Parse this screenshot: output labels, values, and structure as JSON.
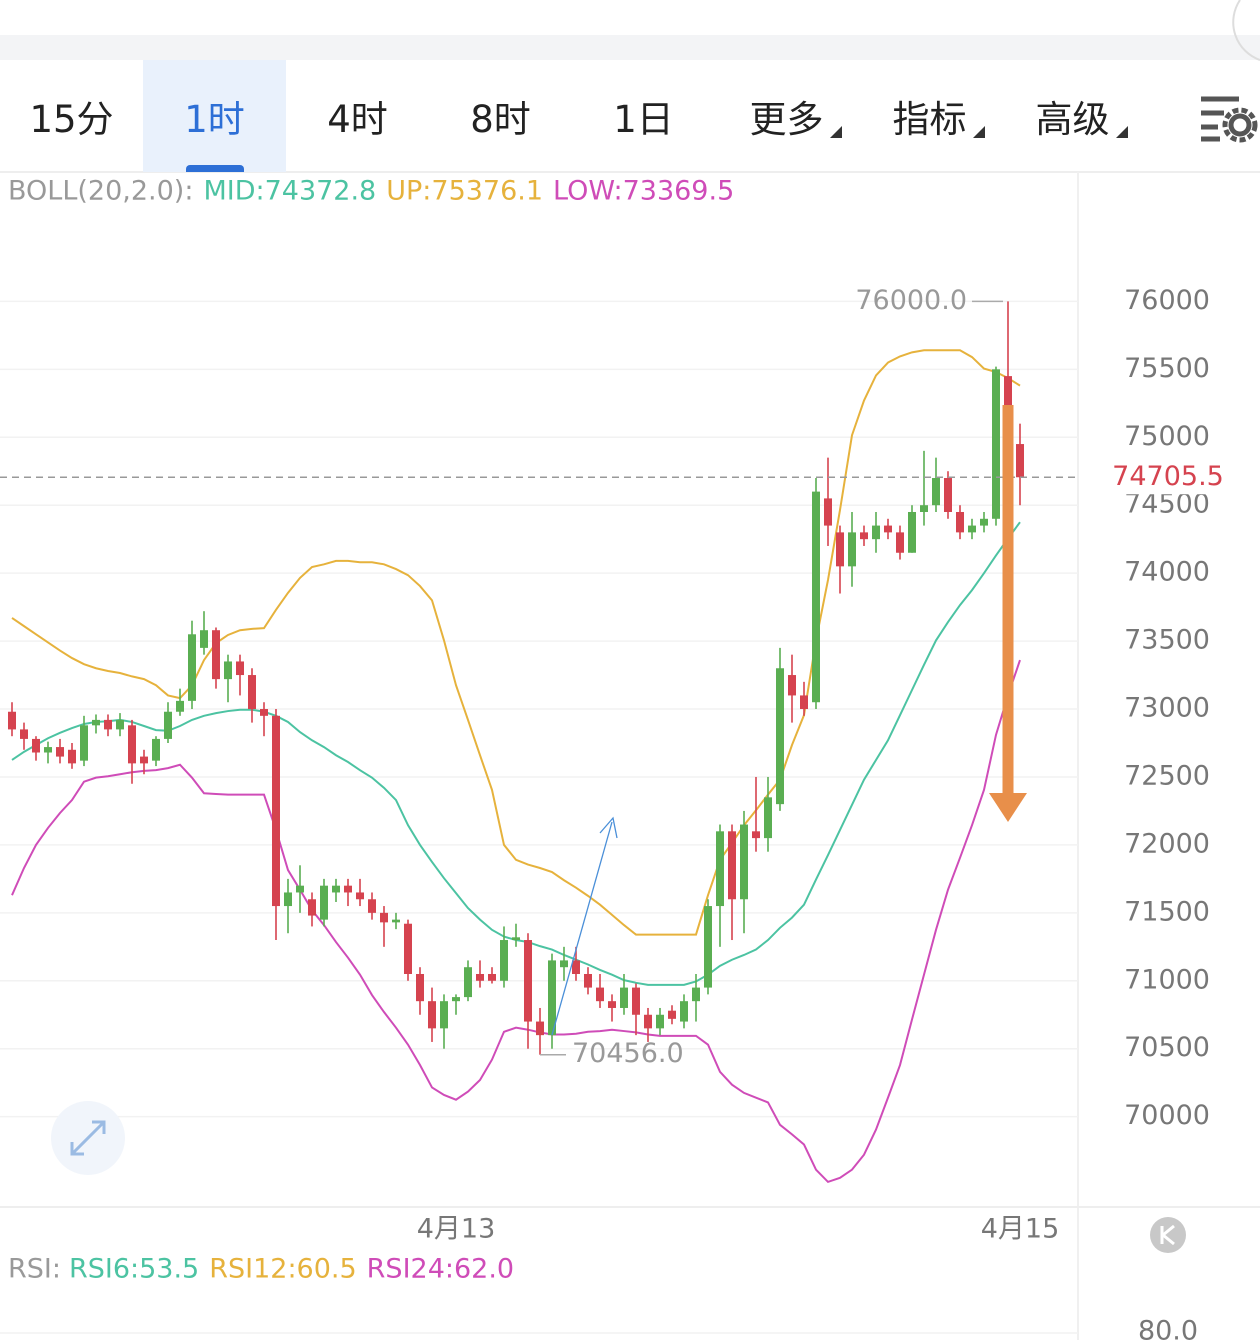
{
  "tabs": {
    "items": [
      "15分",
      "1时",
      "4时",
      "8时",
      "1日",
      "更多",
      "指标",
      "高级"
    ],
    "active": 1
  },
  "chart_data": {
    "type": "candlestick",
    "indicator_label": "BOLL(20,2.0):",
    "categories": [
      null,
      null,
      null,
      null,
      null,
      null,
      null,
      null,
      null,
      null,
      null,
      null,
      null,
      null,
      null,
      null,
      null,
      null,
      null,
      null,
      null,
      null,
      null,
      null,
      null,
      null,
      null,
      null,
      null,
      null,
      null,
      null,
      null,
      null,
      null,
      null,
      null,
      "4月13",
      null,
      null,
      null,
      null,
      null,
      null,
      null,
      null,
      null,
      null,
      null,
      null,
      null,
      null,
      null,
      null,
      null,
      null,
      null,
      null,
      null,
      null,
      null,
      null,
      null,
      null,
      null,
      null,
      null,
      null,
      null,
      null,
      null,
      null,
      null,
      null,
      null,
      null,
      null,
      null,
      null,
      null,
      null,
      null,
      null,
      null,
      "4月15"
    ],
    "open": [
      72980,
      72850,
      72780,
      72680,
      72720,
      72700,
      72620,
      72880,
      72920,
      72850,
      72880,
      72650,
      72620,
      72780,
      72980,
      73060,
      73450,
      73580,
      73220,
      73350,
      73250,
      73000,
      72950,
      71550,
      71650,
      71600,
      71450,
      71650,
      71700,
      71650,
      71600,
      71500,
      71430,
      71420,
      71050,
      70850,
      70650,
      70850,
      70880,
      71050,
      71050,
      71000,
      71300,
      71300,
      70700,
      70600,
      71100,
      71150,
      71050,
      70950,
      70850,
      70800,
      70950,
      70750,
      70650,
      70780,
      70700,
      70850,
      70950,
      71550,
      72100,
      71600,
      72100,
      72050,
      72300,
      73250,
      73100,
      73050,
      74550,
      74300,
      74050,
      74300,
      74250,
      74350,
      74300,
      74150,
      74450,
      74500,
      74700,
      74450,
      74300,
      74350,
      74400,
      75450,
      74950
    ],
    "high": [
      73050,
      72900,
      72800,
      72760,
      72780,
      72750,
      72950,
      72960,
      72960,
      72970,
      72920,
      72700,
      72800,
      73050,
      73150,
      73650,
      73720,
      73600,
      73400,
      73400,
      73300,
      73050,
      73000,
      71750,
      71850,
      71650,
      71750,
      71750,
      71750,
      71750,
      71650,
      71550,
      71500,
      71450,
      71100,
      70950,
      70900,
      70900,
      71150,
      71150,
      71100,
      71400,
      71420,
      71350,
      70800,
      71200,
      71250,
      71250,
      71100,
      71050,
      70900,
      71050,
      70980,
      70800,
      70800,
      70820,
      70900,
      71050,
      71600,
      72150,
      72150,
      72250,
      72500,
      72500,
      73450,
      73400,
      73200,
      74700,
      74850,
      74350,
      74450,
      74350,
      74450,
      74400,
      74350,
      74500,
      74900,
      74850,
      74750,
      74500,
      74400,
      74450,
      75520,
      76000,
      75100
    ],
    "low": [
      72800,
      72700,
      72620,
      72600,
      72600,
      72560,
      72580,
      72820,
      72800,
      72800,
      72450,
      72520,
      72580,
      72750,
      72950,
      73000,
      73400,
      73150,
      73050,
      73100,
      72900,
      72800,
      71300,
      71350,
      71500,
      71400,
      71400,
      71580,
      71550,
      71550,
      71450,
      71250,
      71380,
      71000,
      70750,
      70550,
      70500,
      70750,
      70850,
      70950,
      70980,
      70950,
      71250,
      70500,
      70456,
      70500,
      71000,
      71000,
      70900,
      70800,
      70700,
      70750,
      70600,
      70550,
      70600,
      70680,
      70650,
      70700,
      70900,
      71250,
      71300,
      71350,
      71950,
      71950,
      72250,
      72900,
      72950,
      73000,
      74200,
      73850,
      73900,
      74200,
      74150,
      74250,
      74100,
      74150,
      74350,
      74450,
      74400,
      74250,
      74250,
      74300,
      74350,
      74800,
      74500
    ],
    "close": [
      72850,
      72780,
      72680,
      72720,
      72650,
      72600,
      72880,
      72920,
      72850,
      72920,
      72600,
      72600,
      72780,
      72980,
      73060,
      73550,
      73580,
      73220,
      73350,
      73250,
      73000,
      72950,
      71550,
      71650,
      71700,
      71480,
      71700,
      71700,
      71650,
      71600,
      71500,
      71430,
      71450,
      71050,
      70850,
      70650,
      70850,
      70880,
      71100,
      71000,
      71000,
      71300,
      71320,
      70700,
      70600,
      71150,
      71150,
      71050,
      70950,
      70850,
      70800,
      70950,
      70750,
      70650,
      70750,
      70720,
      70850,
      70950,
      71550,
      72100,
      71600,
      72150,
      72050,
      72350,
      73300,
      73100,
      73000,
      74600,
      74350,
      74050,
      74300,
      74250,
      74350,
      74300,
      74150,
      74450,
      74500,
      74700,
      74450,
      74300,
      74350,
      74400,
      75500,
      74950,
      74705.5
    ],
    "up_color": "#5aae52",
    "down_color": "#d5434f",
    "series": [
      {
        "name": "MID:74372.8",
        "color": "#4cc3a2",
        "values": [
          72625,
          72685,
          72735,
          72785,
          72825,
          72860,
          72890,
          72905,
          72910,
          72920,
          72905,
          72875,
          72845,
          72840,
          72875,
          72920,
          72950,
          72970,
          72985,
          72995,
          72995,
          72980,
          72950,
          72905,
          72830,
          72770,
          72720,
          72660,
          72610,
          72550,
          72495,
          72420,
          72330,
          72145,
          72000,
          71875,
          71755,
          71645,
          71535,
          71450,
          71375,
          71325,
          71300,
          71285,
          71255,
          71230,
          71190,
          71155,
          71120,
          71080,
          71045,
          71005,
          70985,
          70970,
          70970,
          70970,
          70970,
          70995,
          71045,
          71110,
          71155,
          71190,
          71230,
          71300,
          71390,
          71465,
          71560,
          71745,
          71925,
          72110,
          72295,
          72480,
          72625,
          72770,
          72955,
          73140,
          73325,
          73505,
          73640,
          73765,
          73875,
          74000,
          74130,
          74255,
          74375
        ]
      },
      {
        "name": "UP:75376.1",
        "color": "#e6b23c",
        "values": [
          73670,
          73610,
          73550,
          73490,
          73430,
          73375,
          73330,
          73300,
          73280,
          73265,
          73240,
          73220,
          73175,
          73100,
          73080,
          73175,
          73360,
          73485,
          73545,
          73580,
          73590,
          73595,
          73730,
          73855,
          73965,
          74045,
          74065,
          74090,
          74090,
          74080,
          74080,
          74065,
          74030,
          73985,
          73905,
          73800,
          73505,
          73175,
          72920,
          72660,
          72405,
          72000,
          71890,
          71855,
          71830,
          71800,
          71740,
          71685,
          71625,
          71560,
          71485,
          71410,
          71340,
          71340,
          71340,
          71340,
          71340,
          71340,
          71630,
          71890,
          72015,
          72145,
          72255,
          72370,
          72480,
          72735,
          72955,
          73505,
          73950,
          74465,
          75015,
          75270,
          75455,
          75550,
          75595,
          75625,
          75640,
          75640,
          75640,
          75640,
          75590,
          75505,
          75480,
          75435,
          75380
        ]
      },
      {
        "name": "LOW:73369.5",
        "color": "#cf4cb8",
        "values": [
          71630,
          71830,
          72000,
          72125,
          72235,
          72330,
          72465,
          72495,
          72505,
          72520,
          72535,
          72545,
          72550,
          72565,
          72590,
          72495,
          72380,
          72375,
          72370,
          72370,
          72370,
          72370,
          72110,
          71815,
          71670,
          71520,
          71410,
          71285,
          71170,
          71045,
          70895,
          70770,
          70655,
          70530,
          70380,
          70215,
          70160,
          70125,
          70185,
          70270,
          70420,
          70625,
          70655,
          70640,
          70620,
          70605,
          70605,
          70610,
          70625,
          70630,
          70640,
          70630,
          70620,
          70605,
          70595,
          70595,
          70595,
          70595,
          70530,
          70330,
          70235,
          70175,
          70140,
          70105,
          69940,
          69870,
          69795,
          69610,
          69520,
          69550,
          69610,
          69720,
          69905,
          70140,
          70380,
          70715,
          71045,
          71375,
          71670,
          71905,
          72145,
          72405,
          72810,
          73100,
          73360
        ]
      }
    ],
    "ylim": [
      69350,
      76930
    ],
    "yticks": [
      70000,
      70500,
      71000,
      71500,
      72000,
      72500,
      73000,
      73500,
      74000,
      74500,
      75000,
      75500,
      76000
    ],
    "grid": true,
    "last_price": 74705.5,
    "high_marker": {
      "value": 76000,
      "label": "76000.0"
    },
    "low_marker": {
      "value": 70456,
      "label": "70456.0"
    }
  },
  "rsi": {
    "title": "RSI:",
    "legend": [
      {
        "name": "RSI6:53.5",
        "color": "#4cc3a2"
      },
      {
        "name": "RSI12:60.5",
        "color": "#e6b23c"
      },
      {
        "name": "RSI24:62.0",
        "color": "#cf4cb8"
      }
    ],
    "yticks": [
      {
        "value": 80,
        "label": "80.0"
      }
    ]
  }
}
